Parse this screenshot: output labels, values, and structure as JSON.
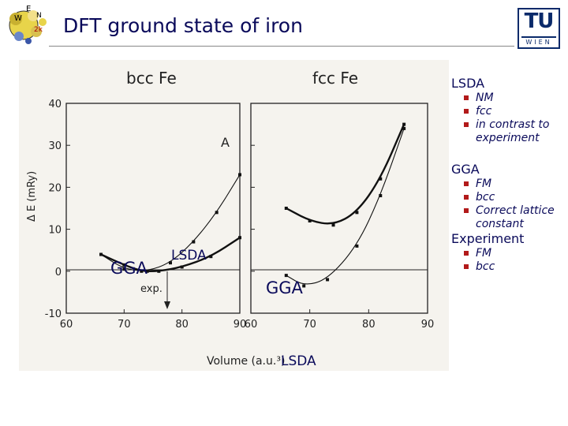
{
  "slide": {
    "title": "DFT ground state of iron"
  },
  "logos": {
    "right_tu": "TU",
    "right_wien": "WIEN",
    "left_logo": "WIEN2k-logo"
  },
  "figure": {
    "panel_left_title": "bcc Fe",
    "panel_right_title": "fcc Fe",
    "y_axis_label": "Δ E (mRy)",
    "x_axis_label": "Volume (a.u.³)",
    "y_ticks": [
      "40",
      "30",
      "20",
      "10",
      "0",
      "-10"
    ],
    "x_ticks_left": [
      "60",
      "70",
      "80",
      "90"
    ],
    "x_ticks_right": [
      "60",
      "70",
      "80",
      "90"
    ],
    "marker_A": "A",
    "exp_label": "exp.",
    "annotations": {
      "gga_left": "GGA",
      "lsda_left": "LSDA",
      "gga_right": "GGA",
      "lsda_right": "LSDA"
    }
  },
  "chart_data": [
    {
      "type": "line",
      "title": "bcc Fe",
      "xlabel": "Volume (a.u.³)",
      "ylabel": "Δ E (mRy)",
      "xlim": [
        60,
        90
      ],
      "ylim": [
        -10,
        40
      ],
      "series": [
        {
          "name": "GGA",
          "x": [
            66,
            70,
            73,
            76,
            80,
            85,
            90
          ],
          "y": [
            4,
            1.5,
            0,
            0,
            1,
            3.5,
            8
          ]
        },
        {
          "name": "LSDA",
          "x": [
            66,
            70,
            74,
            78,
            82,
            86,
            90
          ],
          "y": [
            4,
            0.5,
            0,
            2,
            7,
            14,
            23
          ]
        }
      ]
    },
    {
      "type": "line",
      "title": "fcc Fe",
      "xlabel": "Volume (a.u.³)",
      "ylabel": "Δ E (mRy)",
      "xlim": [
        60,
        90
      ],
      "ylim": [
        -10,
        40
      ],
      "series": [
        {
          "name": "GGA",
          "x": [
            66,
            70,
            74,
            78,
            82,
            86
          ],
          "y": [
            15,
            12,
            11,
            14,
            22,
            35
          ]
        },
        {
          "name": "LSDA",
          "x": [
            66,
            69,
            73,
            78,
            82,
            86
          ],
          "y": [
            -1,
            -3.5,
            -2,
            6,
            18,
            34
          ]
        }
      ]
    }
  ],
  "notes": [
    {
      "head": "LSDA",
      "items": [
        "NM",
        "fcc",
        "in contrast to experiment"
      ]
    },
    {
      "head": "GGA",
      "items": [
        "FM",
        "bcc",
        "Correct lattice constant"
      ]
    },
    {
      "head": "Experiment",
      "items": [
        "FM",
        "bcc"
      ]
    }
  ]
}
